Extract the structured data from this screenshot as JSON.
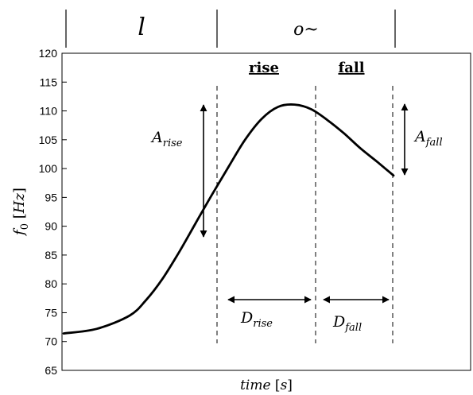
{
  "chart_data": {
    "type": "line",
    "title": "",
    "xlabel": "time [s]",
    "ylabel": "f0 [Hz]",
    "ylim": [
      65,
      120
    ],
    "yticks": [
      65,
      70,
      75,
      80,
      85,
      90,
      95,
      100,
      105,
      110,
      115,
      120
    ],
    "grid": false,
    "x": [
      0.0,
      0.1,
      0.2,
      0.25,
      0.3,
      0.35,
      0.4,
      0.45,
      0.5,
      0.55,
      0.6,
      0.65,
      0.7,
      0.75,
      0.8,
      0.85,
      0.9,
      0.95,
      1.0
    ],
    "values": [
      71.4,
      72.2,
      74.5,
      77.2,
      80.9,
      85.5,
      90.5,
      95.5,
      100.3,
      105.0,
      108.6,
      110.7,
      111.1,
      110.3,
      108.4,
      106.1,
      103.5,
      101.2,
      98.8
    ],
    "segments": {
      "onset_x": 0.45,
      "peak_x": 0.7,
      "offset_x": 0.9
    },
    "phone_tier": [
      "l",
      "o~"
    ],
    "annotations": {
      "rise_label": "rise",
      "fall_label": "fall",
      "a_rise": "A_rise",
      "a_fall": "A_fall",
      "d_rise": "D_rise",
      "d_fall": "D_fall"
    }
  }
}
